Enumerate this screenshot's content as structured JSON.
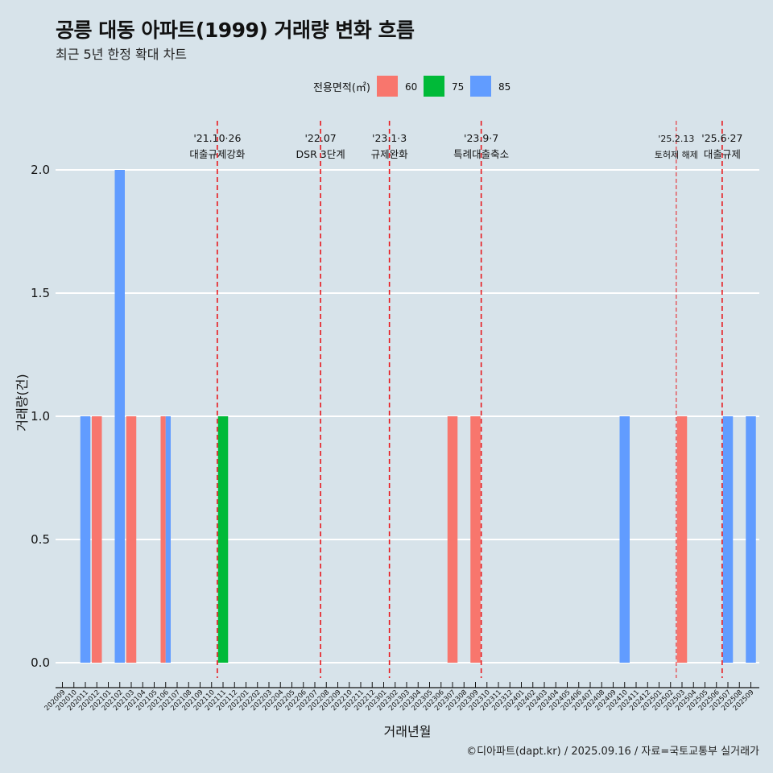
{
  "title": "공릉 대동 아파트(1999) 거래량 변화 흐름",
  "subtitle": "최근 5년 한정 확대 차트",
  "caption": "©디아파트(dapt.kr) / 2025.09.16 / 자료=국토교통부 실거래가",
  "colors": {
    "background": "#d7e3ea",
    "grid": "#ffffff",
    "event_line": "#e8191e",
    "s60": "#f8766d",
    "s75": "#00ba38",
    "s85": "#619cff"
  },
  "chart_data": {
    "type": "bar",
    "title": "공릉 대동 아파트(1999) 거래량 변화 흐름",
    "xlabel": "거래년월",
    "ylabel": "거래량(건)",
    "ylim": [
      0,
      2
    ],
    "yticks": [
      "0.0",
      "0.5",
      "1.0",
      "1.5",
      "2.0"
    ],
    "legend_title": "전용면적(㎡)",
    "legend_position": "top",
    "categories": [
      "202009",
      "202010",
      "202011",
      "202012",
      "202101",
      "202102",
      "202103",
      "202104",
      "202105",
      "202106",
      "202107",
      "202108",
      "202109",
      "202110",
      "202111",
      "202112",
      "202201",
      "202202",
      "202203",
      "202204",
      "202205",
      "202206",
      "202207",
      "202208",
      "202209",
      "202210",
      "202211",
      "202212",
      "202301",
      "202302",
      "202303",
      "202304",
      "202305",
      "202306",
      "202307",
      "202308",
      "202309",
      "202310",
      "202311",
      "202312",
      "202401",
      "202402",
      "202403",
      "202404",
      "202405",
      "202406",
      "202407",
      "202408",
      "202409",
      "202410",
      "202411",
      "202412",
      "202501",
      "202502",
      "202503",
      "202504",
      "202505",
      "202506",
      "202507",
      "202508",
      "202509"
    ],
    "series": [
      {
        "name": "60",
        "color": "#f8766d",
        "points": [
          {
            "month": "202012",
            "value": 1
          },
          {
            "month": "202103",
            "value": 1
          },
          {
            "month": "202106",
            "value": 1
          },
          {
            "month": "202307",
            "value": 1
          },
          {
            "month": "202309",
            "value": 1
          },
          {
            "month": "202503",
            "value": 1
          }
        ]
      },
      {
        "name": "75",
        "color": "#00ba38",
        "points": [
          {
            "month": "202111",
            "value": 1
          }
        ]
      },
      {
        "name": "85",
        "color": "#619cff",
        "points": [
          {
            "month": "202011",
            "value": 1
          },
          {
            "month": "202102",
            "value": 2
          },
          {
            "month": "202106",
            "value": 1
          },
          {
            "month": "202410",
            "value": 1
          },
          {
            "month": "202507",
            "value": 1
          },
          {
            "month": "202509",
            "value": 1
          }
        ]
      }
    ],
    "events": [
      {
        "date": "'21.10·26",
        "label": "대출규제강화",
        "at": "202110"
      },
      {
        "date": "'22.07",
        "label": "DSR 3단계",
        "at": "202207"
      },
      {
        "date": "'23.1·3",
        "label": "규제완화",
        "at": "202301"
      },
      {
        "date": "'23.9·7",
        "label": "특례대출축소",
        "at": "202309"
      },
      {
        "date": "'25.2.13",
        "label": "토허제 해제",
        "at": "202502",
        "minor": true
      },
      {
        "date": "'25.6·27",
        "label": "대출규제",
        "at": "202506"
      }
    ]
  }
}
